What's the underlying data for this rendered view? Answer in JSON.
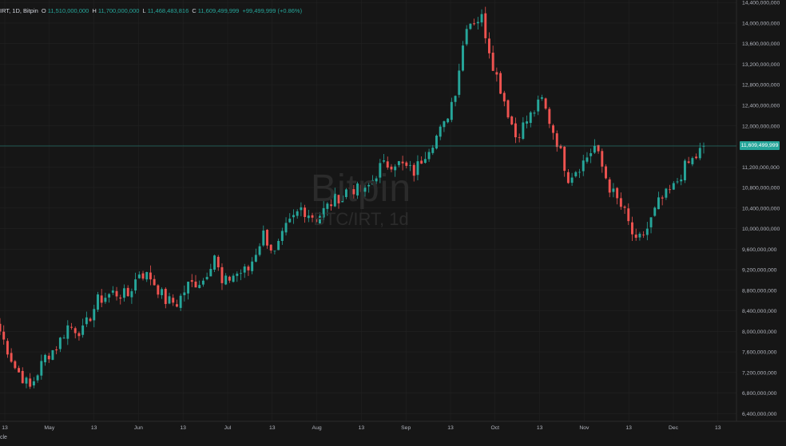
{
  "legend": {
    "symbol": "IRT, 1D, Bitpin",
    "open_key": "O",
    "open": "11,510,000,000",
    "high_key": "H",
    "high": "11,700,000,000",
    "low_key": "L",
    "low": "11,468,483,816",
    "close_key": "C",
    "close": "11,609,499,999",
    "change": "+99,499,999 (+0.86%)"
  },
  "watermark": {
    "title": "Bitpin",
    "subtitle": "BTC/IRT, 1d"
  },
  "last_price_label": "11,609,499,999",
  "bottom_text": "cle",
  "colors": {
    "up": "#26a69a",
    "down": "#ef5350",
    "background": "#161616",
    "grid": "#222222",
    "axis_text": "#b2b5be"
  },
  "chart_data": {
    "type": "candlestick",
    "x_labels": [
      "13",
      "May",
      "13",
      "Jun",
      "13",
      "Jul",
      "13",
      "Aug",
      "13",
      "Sep",
      "13",
      "Oct",
      "13",
      "Nov",
      "13",
      "Dec",
      "13"
    ],
    "y_ticks": [
      6400000000,
      6800000000,
      7200000000,
      7600000000,
      8000000000,
      8400000000,
      8800000000,
      9200000000,
      9600000000,
      10000000000,
      10400000000,
      10800000000,
      11200000000,
      11600000000,
      12000000000,
      12400000000,
      12800000000,
      13200000000,
      13600000000,
      14000000000,
      14400000000
    ],
    "y_tick_labels": [
      "6,400,000,000",
      "6,800,000,000",
      "7,200,000,000",
      "7,600,000,000",
      "8,000,000,000",
      "8,400,000,000",
      "8,800,000,000",
      "9,200,000,000",
      "9,600,000,000",
      "10,000,000,000",
      "10,400,000,000",
      "10,800,000,000",
      "11,200,000,000",
      "11,600,000,000",
      "12,000,000,000",
      "12,400,000,000",
      "12,800,000,000",
      "13,200,000,000",
      "13,600,000,000",
      "14,000,000,000",
      "14,400,000,000"
    ],
    "ylim": [
      6250000000,
      14450000000
    ],
    "last_price": 11609499999,
    "close_path": [
      [
        0,
        8000000000
      ],
      [
        4,
        7300000000
      ],
      [
        8,
        6900000000
      ],
      [
        12,
        7500000000
      ],
      [
        15,
        7700000000
      ],
      [
        18,
        8100000000
      ],
      [
        22,
        8000000000
      ],
      [
        26,
        8600000000
      ],
      [
        30,
        8750000000
      ],
      [
        34,
        8700000000
      ],
      [
        37,
        9150000000
      ],
      [
        40,
        9050000000
      ],
      [
        44,
        8600000000
      ],
      [
        47,
        8550000000
      ],
      [
        50,
        8900000000
      ],
      [
        54,
        9000000000
      ],
      [
        57,
        9500000000
      ],
      [
        59,
        8900000000
      ],
      [
        62,
        9100000000
      ],
      [
        66,
        9200000000
      ],
      [
        70,
        9900000000
      ],
      [
        73,
        9500000000
      ],
      [
        76,
        10000000000
      ],
      [
        80,
        10400000000
      ],
      [
        84,
        10200000000
      ],
      [
        88,
        10500000000
      ],
      [
        93,
        10800000000
      ],
      [
        97,
        10700000000
      ],
      [
        101,
        11200000000
      ],
      [
        105,
        11300000000
      ],
      [
        110,
        11100000000
      ],
      [
        114,
        11600000000
      ],
      [
        118,
        12000000000
      ],
      [
        121,
        12700000000
      ],
      [
        124,
        14000000000
      ],
      [
        128,
        14100000000
      ],
      [
        131,
        13200000000
      ],
      [
        134,
        12500000000
      ],
      [
        137,
        11800000000
      ],
      [
        141,
        12200000000
      ],
      [
        144,
        12500000000
      ],
      [
        148,
        11700000000
      ],
      [
        151,
        11000000000
      ],
      [
        155,
        11300000000
      ],
      [
        158,
        11600000000
      ],
      [
        162,
        10800000000
      ],
      [
        166,
        10300000000
      ],
      [
        169,
        9700000000
      ],
      [
        172,
        10000000000
      ],
      [
        175,
        10500000000
      ],
      [
        179,
        10800000000
      ],
      [
        182,
        11200000000
      ],
      [
        185,
        11400000000
      ],
      [
        187,
        11609499999
      ]
    ]
  }
}
